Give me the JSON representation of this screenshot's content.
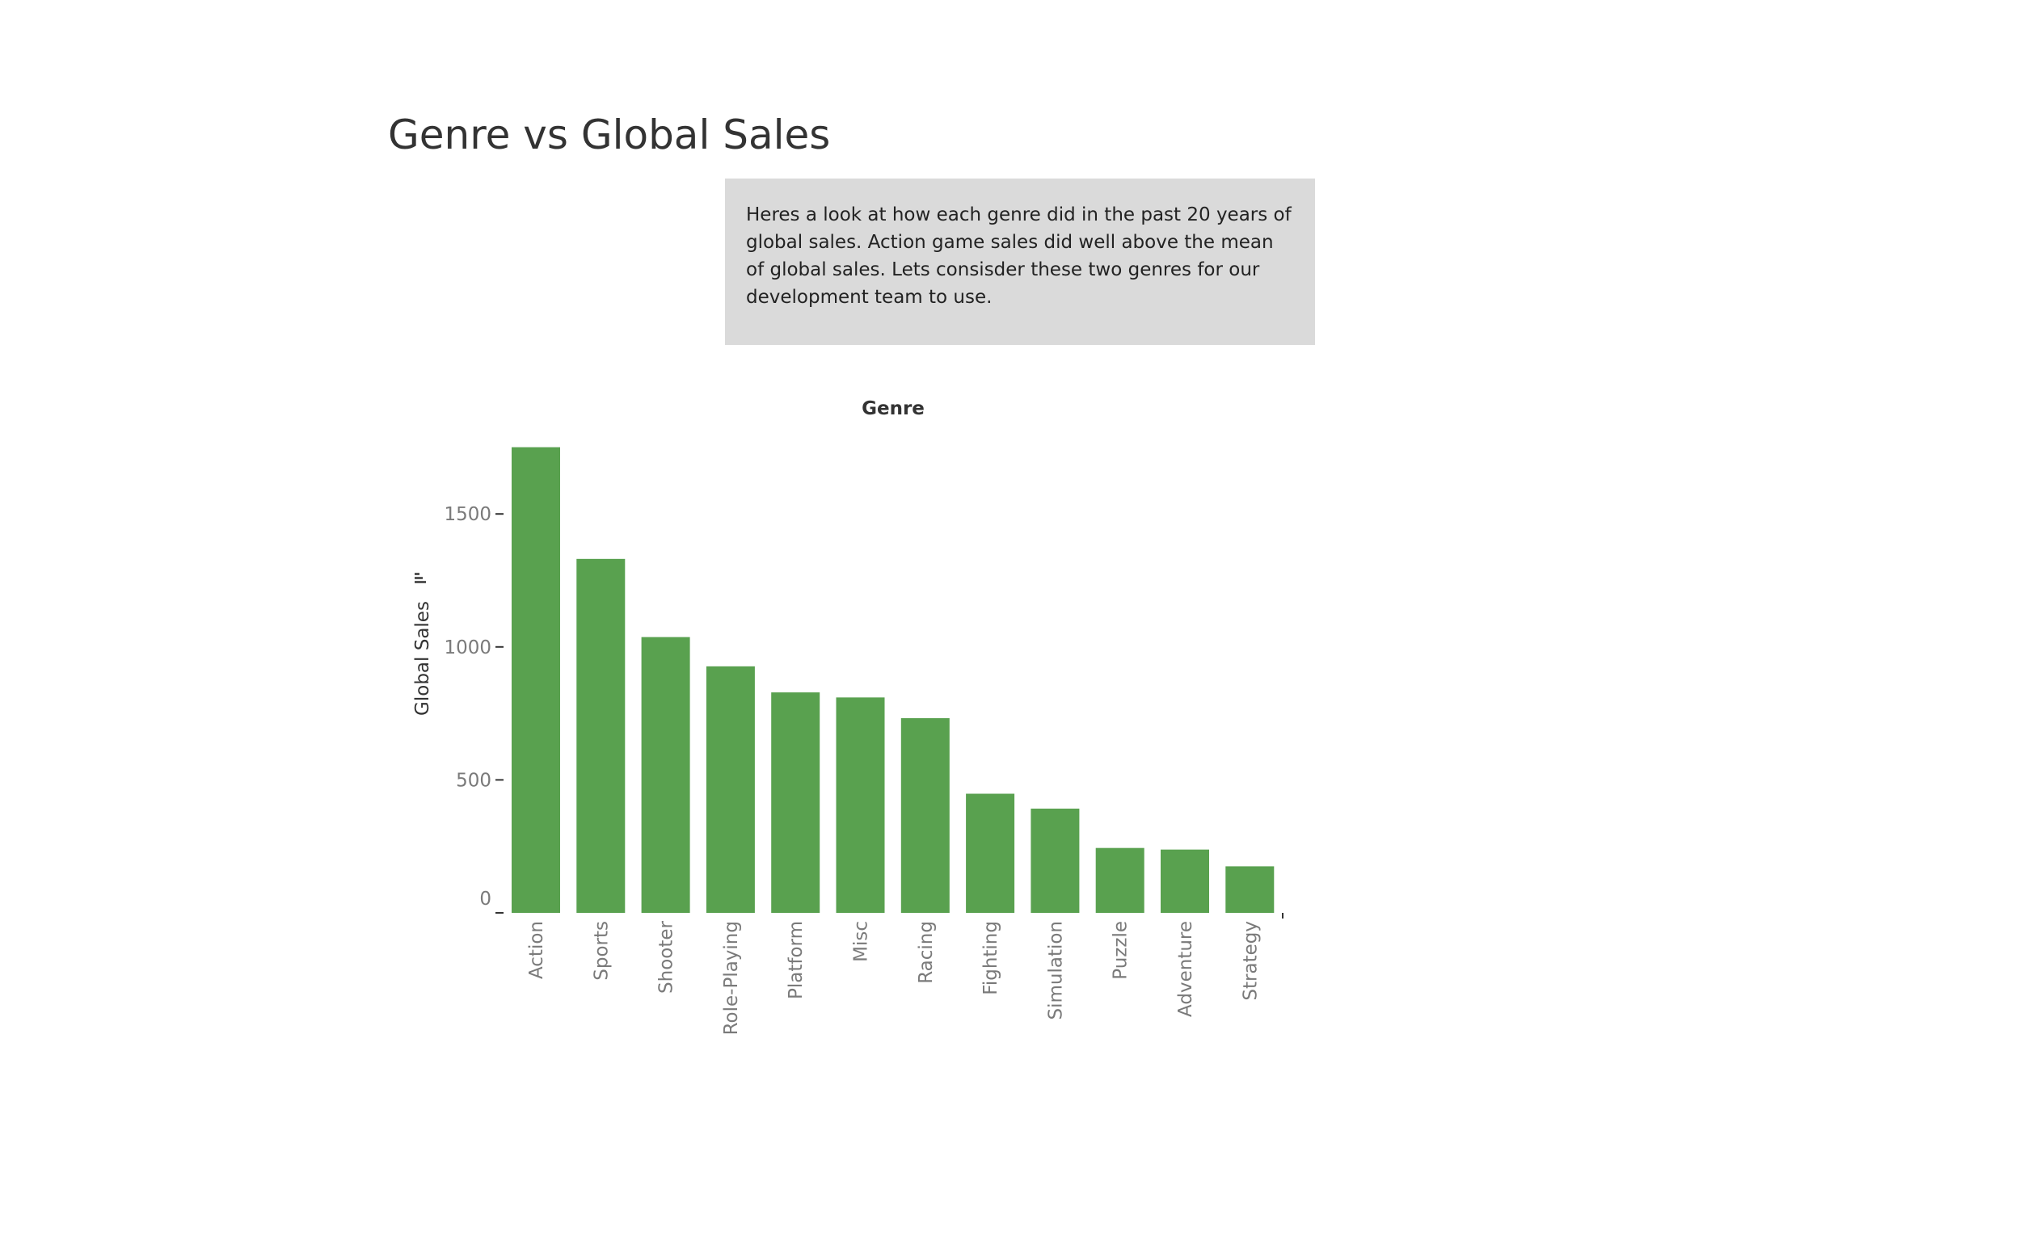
{
  "title": "Genre vs Global Sales",
  "caption": "Heres a look at how each genre did in the past 20 years of global sales. Action game sales did well above the mean of global sales. Lets consisder these two genres for our development team to use.",
  "colors": {
    "bar": "#59a14f",
    "axis_text": "#7a7a7a",
    "header_text": "#333333",
    "caption_bg": "#dadada"
  },
  "chart_data": {
    "type": "bar",
    "column_header": "Genre",
    "xlabel": "",
    "ylabel": "Global Sales",
    "categories": [
      "Action",
      "Sports",
      "Shooter",
      "Role-Playing",
      "Platform",
      "Misc",
      "Racing",
      "Fighting",
      "Simulation",
      "Puzzle",
      "Adventure",
      "Strategy"
    ],
    "values": [
      1751,
      1331,
      1037,
      927,
      829,
      810,
      732,
      448,
      392,
      244,
      238,
      175
    ],
    "yticks": [
      0,
      500,
      1000,
      1500
    ],
    "ylim": [
      0,
      1800
    ],
    "sort_icon": "sort-descending-icon",
    "grid": false,
    "legend": "none"
  }
}
